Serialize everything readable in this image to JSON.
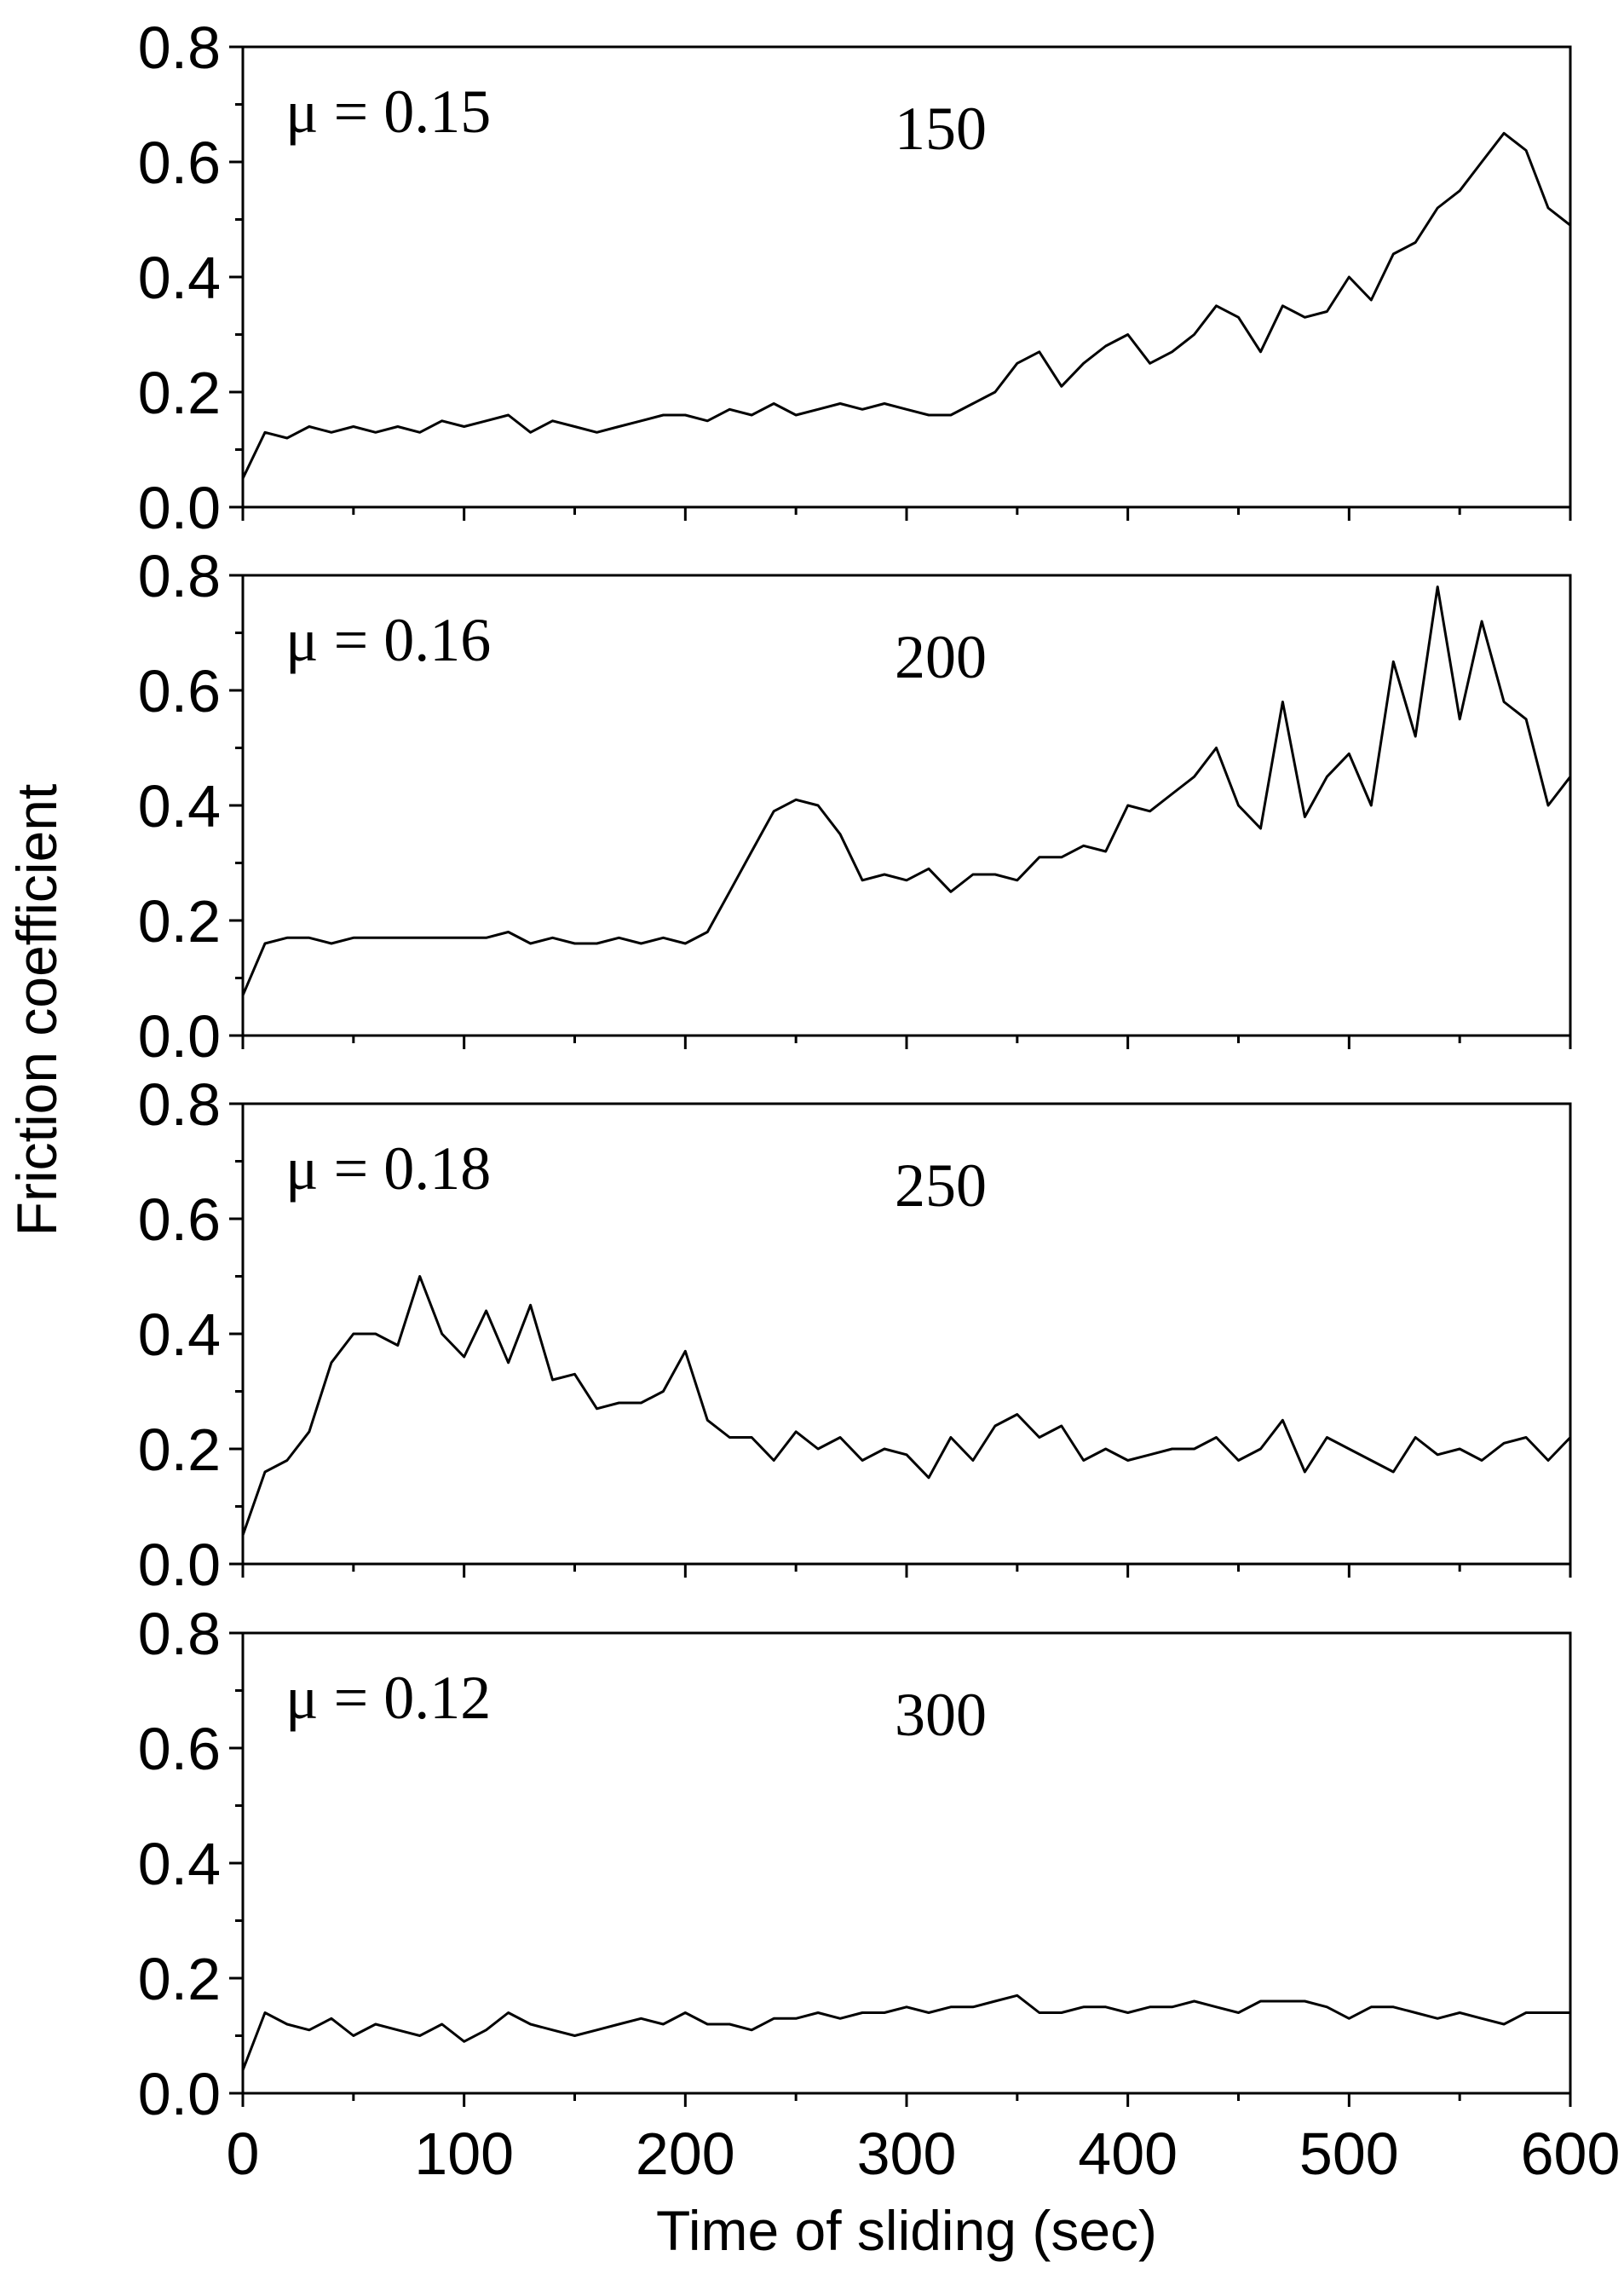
{
  "chart_data": [
    {
      "type": "line",
      "annotation": "μ = 0.15",
      "label": "150",
      "color": "#000000",
      "x": [
        0,
        10,
        20,
        30,
        40,
        50,
        60,
        70,
        80,
        90,
        100,
        110,
        120,
        130,
        140,
        150,
        160,
        170,
        180,
        190,
        200,
        210,
        220,
        230,
        240,
        250,
        260,
        270,
        280,
        290,
        300,
        310,
        320,
        330,
        340,
        350,
        360,
        370,
        380,
        390,
        400,
        410,
        420,
        430,
        440,
        450,
        460,
        470,
        480,
        490,
        500,
        510,
        520,
        530,
        540,
        550,
        560,
        570,
        580,
        590,
        600
      ],
      "values": [
        0.05,
        0.13,
        0.12,
        0.14,
        0.13,
        0.14,
        0.13,
        0.14,
        0.13,
        0.15,
        0.14,
        0.15,
        0.16,
        0.13,
        0.15,
        0.14,
        0.13,
        0.14,
        0.15,
        0.16,
        0.16,
        0.15,
        0.17,
        0.16,
        0.18,
        0.16,
        0.17,
        0.18,
        0.17,
        0.18,
        0.17,
        0.16,
        0.16,
        0.18,
        0.2,
        0.25,
        0.27,
        0.21,
        0.25,
        0.28,
        0.3,
        0.25,
        0.27,
        0.3,
        0.35,
        0.33,
        0.27,
        0.35,
        0.33,
        0.34,
        0.4,
        0.36,
        0.44,
        0.46,
        0.52,
        0.55,
        0.6,
        0.65,
        0.62,
        0.52,
        0.49
      ],
      "xlim": [
        0,
        600
      ],
      "xticks": [
        0,
        100,
        200,
        300,
        400,
        500,
        600
      ],
      "ylim": [
        0,
        0.8
      ],
      "yticks": [
        {
          "value": 0,
          "label": "0.0"
        },
        0.2,
        0.4,
        0.6,
        0.8
      ]
    },
    {
      "type": "line",
      "annotation": "μ = 0.16",
      "label": "200",
      "color": "#000000",
      "x": [
        0,
        10,
        20,
        30,
        40,
        50,
        60,
        70,
        80,
        90,
        100,
        110,
        120,
        130,
        140,
        150,
        160,
        170,
        180,
        190,
        200,
        210,
        220,
        230,
        240,
        250,
        260,
        270,
        280,
        290,
        300,
        310,
        320,
        330,
        340,
        350,
        360,
        370,
        380,
        390,
        400,
        410,
        420,
        430,
        440,
        450,
        460,
        470,
        480,
        490,
        500,
        510,
        520,
        530,
        540,
        550,
        560,
        570,
        580,
        590,
        600
      ],
      "values": [
        0.07,
        0.16,
        0.17,
        0.17,
        0.16,
        0.17,
        0.17,
        0.17,
        0.17,
        0.17,
        0.17,
        0.17,
        0.18,
        0.16,
        0.17,
        0.16,
        0.16,
        0.17,
        0.16,
        0.17,
        0.16,
        0.18,
        0.25,
        0.32,
        0.39,
        0.41,
        0.4,
        0.35,
        0.27,
        0.28,
        0.27,
        0.29,
        0.25,
        0.28,
        0.28,
        0.27,
        0.31,
        0.31,
        0.33,
        0.32,
        0.4,
        0.39,
        0.42,
        0.45,
        0.5,
        0.4,
        0.36,
        0.58,
        0.38,
        0.45,
        0.49,
        0.4,
        0.65,
        0.52,
        0.78,
        0.55,
        0.72,
        0.58,
        0.55,
        0.4,
        0.45
      ],
      "xlim": [
        0,
        600
      ],
      "xticks": [
        0,
        100,
        200,
        300,
        400,
        500,
        600
      ],
      "ylim": [
        0,
        0.8
      ],
      "yticks": [
        {
          "value": 0,
          "label": "0.0"
        },
        0.2,
        0.4,
        0.6,
        0.8
      ]
    },
    {
      "type": "line",
      "annotation": "μ = 0.18",
      "label": "250",
      "color": "#000000",
      "x": [
        0,
        10,
        20,
        30,
        40,
        50,
        60,
        70,
        80,
        90,
        100,
        110,
        120,
        130,
        140,
        150,
        160,
        170,
        180,
        190,
        200,
        210,
        220,
        230,
        240,
        250,
        260,
        270,
        280,
        290,
        300,
        310,
        320,
        330,
        340,
        350,
        360,
        370,
        380,
        390,
        400,
        410,
        420,
        430,
        440,
        450,
        460,
        470,
        480,
        490,
        500,
        510,
        520,
        530,
        540,
        550,
        560,
        570,
        580,
        590,
        600
      ],
      "values": [
        0.05,
        0.16,
        0.18,
        0.23,
        0.35,
        0.4,
        0.4,
        0.38,
        0.5,
        0.4,
        0.36,
        0.44,
        0.35,
        0.45,
        0.32,
        0.33,
        0.27,
        0.28,
        0.28,
        0.3,
        0.37,
        0.25,
        0.22,
        0.22,
        0.18,
        0.23,
        0.2,
        0.22,
        0.18,
        0.2,
        0.19,
        0.15,
        0.22,
        0.18,
        0.24,
        0.26,
        0.22,
        0.24,
        0.18,
        0.2,
        0.18,
        0.19,
        0.2,
        0.2,
        0.22,
        0.18,
        0.2,
        0.25,
        0.16,
        0.22,
        0.2,
        0.18,
        0.16,
        0.22,
        0.19,
        0.2,
        0.18,
        0.21,
        0.22,
        0.18,
        0.22
      ],
      "xlim": [
        0,
        600
      ],
      "xticks": [
        0,
        100,
        200,
        300,
        400,
        500,
        600
      ],
      "ylim": [
        0,
        0.8
      ],
      "yticks": [
        {
          "value": 0,
          "label": "0.0"
        },
        0.2,
        0.4,
        0.6,
        0.8
      ]
    },
    {
      "type": "line",
      "annotation": "μ = 0.12",
      "label": "300",
      "color": "#000000",
      "x": [
        0,
        10,
        20,
        30,
        40,
        50,
        60,
        70,
        80,
        90,
        100,
        110,
        120,
        130,
        140,
        150,
        160,
        170,
        180,
        190,
        200,
        210,
        220,
        230,
        240,
        250,
        260,
        270,
        280,
        290,
        300,
        310,
        320,
        330,
        340,
        350,
        360,
        370,
        380,
        390,
        400,
        410,
        420,
        430,
        440,
        450,
        460,
        470,
        480,
        490,
        500,
        510,
        520,
        530,
        540,
        550,
        560,
        570,
        580,
        590,
        600
      ],
      "values": [
        0.04,
        0.14,
        0.12,
        0.11,
        0.13,
        0.1,
        0.12,
        0.11,
        0.1,
        0.12,
        0.09,
        0.11,
        0.14,
        0.12,
        0.11,
        0.1,
        0.11,
        0.12,
        0.13,
        0.12,
        0.14,
        0.12,
        0.12,
        0.11,
        0.13,
        0.13,
        0.14,
        0.13,
        0.14,
        0.14,
        0.15,
        0.14,
        0.15,
        0.15,
        0.16,
        0.17,
        0.14,
        0.14,
        0.15,
        0.15,
        0.14,
        0.15,
        0.15,
        0.16,
        0.15,
        0.14,
        0.16,
        0.16,
        0.16,
        0.15,
        0.13,
        0.15,
        0.15,
        0.14,
        0.13,
        0.14,
        0.13,
        0.12,
        0.14,
        0.14,
        0.14
      ],
      "xlim": [
        0,
        600
      ],
      "xticks": [
        0,
        100,
        200,
        300,
        400,
        500,
        600
      ],
      "show_xtick_labels": true,
      "ylim": [
        0,
        0.8
      ],
      "yticks": [
        {
          "value": 0,
          "label": "0.0"
        },
        0.2,
        0.4,
        0.6,
        0.8
      ]
    }
  ],
  "xlabel": "Time of sliding (sec)",
  "ylabel": "Friction coefficient"
}
